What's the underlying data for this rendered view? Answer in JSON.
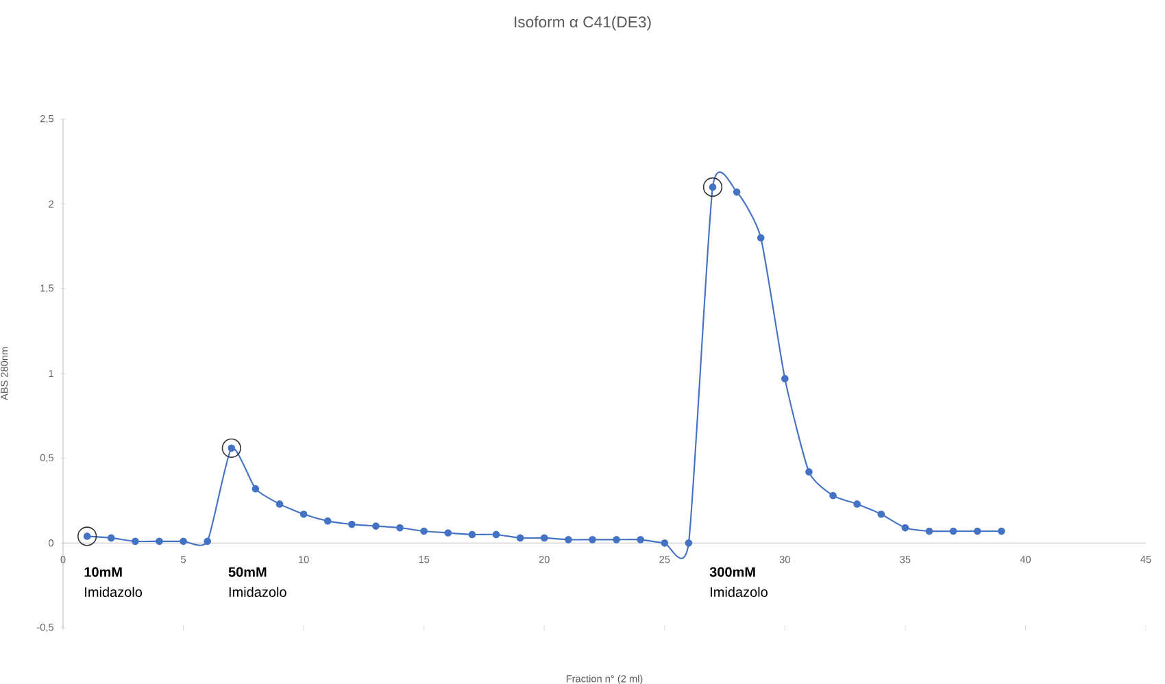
{
  "chart_data": {
    "type": "line",
    "title": "Isoform α C41(DE3)",
    "xlabel": "Fraction n° (2 ml)",
    "ylabel": "ABS 280nm",
    "x": [
      1,
      2,
      3,
      4,
      5,
      6,
      7,
      8,
      9,
      10,
      11,
      12,
      13,
      14,
      15,
      16,
      17,
      18,
      19,
      20,
      21,
      22,
      23,
      24,
      25,
      26,
      27,
      28,
      29,
      30,
      31,
      32,
      33,
      34,
      35,
      36,
      37,
      38,
      39
    ],
    "series": [
      {
        "color": "#4472c4",
        "values": [
          0.04,
          0.03,
          0.01,
          0.01,
          0.01,
          0.01,
          0.56,
          0.32,
          0.23,
          0.17,
          0.13,
          0.11,
          0.1,
          0.09,
          0.07,
          0.06,
          0.05,
          0.05,
          0.03,
          0.03,
          0.02,
          0.02,
          0.02,
          0.02,
          0.0,
          0.0,
          2.1,
          2.07,
          1.8,
          0.97,
          0.42,
          0.28,
          0.23,
          0.17,
          0.09,
          0.07,
          0.07,
          0.07,
          0.07
        ]
      }
    ],
    "xlim": [
      0,
      45
    ],
    "xticks": [
      0,
      5,
      10,
      15,
      20,
      25,
      30,
      35,
      40,
      45
    ],
    "ylim": [
      -0.5,
      2.5
    ],
    "yticks": [
      {
        "value": -0.5,
        "label": "-0,5"
      },
      0,
      {
        "value": 0.5,
        "label": "0,5"
      },
      1,
      {
        "value": 1.5,
        "label": "1,5"
      },
      2,
      {
        "value": 2.5,
        "label": "2,5"
      }
    ],
    "marker": "circle",
    "line_style": "solid",
    "grid": false,
    "annotations": [
      "**10mM** Imidazolo",
      "**50mM** Imidazolo",
      "**300mM** Imidazolo"
    ]
  }
}
